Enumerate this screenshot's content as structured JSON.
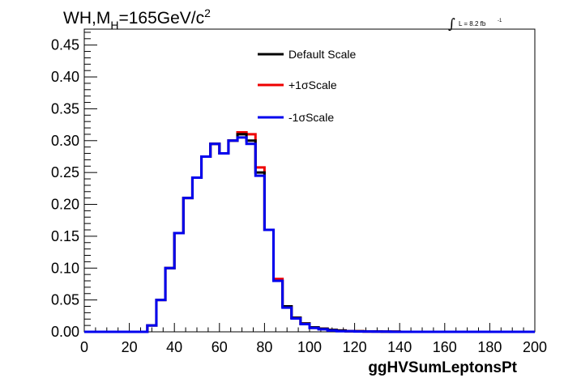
{
  "header": {
    "title_prefix": "WH,M",
    "title_subscript": "H",
    "title_main": "=165GeV/c",
    "title_superscript": "2"
  },
  "luminosity": {
    "integral_symbol": "∫",
    "text": "L = 8.2 fb",
    "superscript": "-1"
  },
  "colors": {
    "default": "#000000",
    "plus": "#ee0000",
    "minus": "#0000ee"
  },
  "chart_data": {
    "type": "line",
    "style": "step-histogram",
    "xlabel": "ggHVSumLeptonsPt",
    "ylabel": "",
    "xlim": [
      0,
      200
    ],
    "ylim": [
      0,
      0.475
    ],
    "xticks": [
      "0",
      "20",
      "40",
      "60",
      "80",
      "100",
      "120",
      "140",
      "160",
      "180",
      "200"
    ],
    "yticks": [
      "0.00",
      "0.05",
      "0.10",
      "0.15",
      "0.20",
      "0.25",
      "0.30",
      "0.35",
      "0.40",
      "0.45"
    ],
    "bin_width": 4,
    "bin_edges_start": 0,
    "grid": false,
    "legend_position": "top-center",
    "series": [
      {
        "name": "Default Scale",
        "color_key": "default",
        "values": [
          0,
          0,
          0,
          0,
          0,
          0,
          0,
          0.01,
          0.05,
          0.1,
          0.155,
          0.21,
          0.242,
          0.275,
          0.295,
          0.28,
          0.3,
          0.31,
          0.3,
          0.25,
          0.16,
          0.08,
          0.04,
          0.022,
          0.013,
          0.007,
          0.005,
          0.003,
          0.002,
          0.001,
          0.001,
          0.0005,
          0.0005,
          0.0003,
          0.0003,
          0,
          0,
          0,
          0,
          0,
          0,
          0,
          0,
          0,
          0,
          0,
          0,
          0,
          0,
          0
        ]
      },
      {
        "name": "+1σScale",
        "color_key": "plus",
        "values": [
          0,
          0,
          0,
          0,
          0,
          0,
          0,
          0.01,
          0.05,
          0.1,
          0.155,
          0.21,
          0.242,
          0.275,
          0.295,
          0.28,
          0.3,
          0.313,
          0.31,
          0.258,
          0.16,
          0.083,
          0.04,
          0.022,
          0.013,
          0.007,
          0.005,
          0.003,
          0.002,
          0.001,
          0.001,
          0.0005,
          0.0005,
          0.0003,
          0.0003,
          0,
          0,
          0,
          0,
          0,
          0,
          0,
          0,
          0,
          0,
          0,
          0,
          0,
          0,
          0
        ]
      },
      {
        "name": "-1σScale",
        "color_key": "minus",
        "values": [
          0,
          0,
          0,
          0,
          0,
          0,
          0,
          0.01,
          0.05,
          0.1,
          0.155,
          0.21,
          0.242,
          0.275,
          0.295,
          0.28,
          0.3,
          0.305,
          0.295,
          0.245,
          0.16,
          0.08,
          0.038,
          0.021,
          0.012,
          0.006,
          0.004,
          0.002,
          0.001,
          0.001,
          0.0005,
          0.0005,
          0.0003,
          0.0003,
          0,
          0,
          0,
          0,
          0,
          0,
          0,
          0,
          0,
          0,
          0,
          0,
          0,
          0,
          0,
          0
        ]
      }
    ]
  }
}
